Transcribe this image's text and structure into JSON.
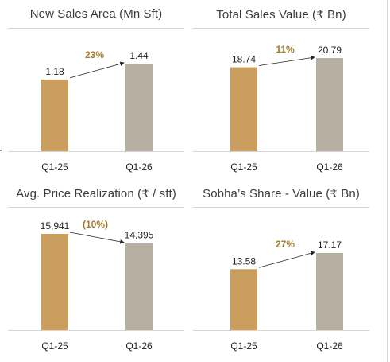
{
  "charts": [
    {
      "type": "bar",
      "title": "New Sales Area (Mn Sft)",
      "categories": [
        "Q1-25",
        "Q1-26"
      ],
      "values": [
        1.18,
        1.44
      ],
      "value_labels": [
        "1.18",
        "1.44"
      ],
      "change_label": "23%",
      "colors": [
        "#C99E5E",
        "#B8AFA3"
      ],
      "change_color": "#A37B2E"
    },
    {
      "type": "bar",
      "title": "Total Sales Value (₹ Bn)",
      "categories": [
        "Q1-25",
        "Q1-26"
      ],
      "values": [
        18.74,
        20.79
      ],
      "value_labels": [
        "18.74",
        "20.79"
      ],
      "change_label": "11%",
      "colors": [
        "#C99E5E",
        "#B8AFA3"
      ],
      "change_color": "#A37B2E"
    },
    {
      "type": "bar",
      "title": "Avg. Price Realization (₹ / sft)",
      "categories": [
        "Q1-25",
        "Q1-26"
      ],
      "values": [
        15941,
        14395
      ],
      "value_labels": [
        "15,941",
        "14,395"
      ],
      "change_label": "(10%)",
      "colors": [
        "#C99E5E",
        "#B8AFA3"
      ],
      "change_color": "#A37B2E"
    },
    {
      "type": "bar",
      "title": "Sobha’s Share - Value (₹ Bn)",
      "categories": [
        "Q1-25",
        "Q1-26"
      ],
      "values": [
        13.58,
        17.17
      ],
      "value_labels": [
        "13.58",
        "17.17"
      ],
      "change_label": "27%",
      "colors": [
        "#C99E5E",
        "#B8AFA3"
      ],
      "change_color": "#A37B2E"
    }
  ],
  "chart_data": [
    {
      "type": "bar",
      "title": "New Sales Area (Mn Sft)",
      "categories": [
        "Q1-25",
        "Q1-26"
      ],
      "values": [
        1.18,
        1.44
      ],
      "annotations": [
        "23%"
      ]
    },
    {
      "type": "bar",
      "title": "Total Sales Value (₹ Bn)",
      "categories": [
        "Q1-25",
        "Q1-26"
      ],
      "values": [
        18.74,
        20.79
      ],
      "annotations": [
        "11%"
      ]
    },
    {
      "type": "bar",
      "title": "Avg. Price Realization (₹ / sft)",
      "categories": [
        "Q1-25",
        "Q1-26"
      ],
      "values": [
        15941,
        14395
      ],
      "annotations": [
        "(10%)"
      ]
    },
    {
      "type": "bar",
      "title": "Sobha’s Share - Value (₹ Bn)",
      "categories": [
        "Q1-25",
        "Q1-26"
      ],
      "values": [
        13.58,
        17.17
      ],
      "annotations": [
        "27%"
      ]
    }
  ]
}
